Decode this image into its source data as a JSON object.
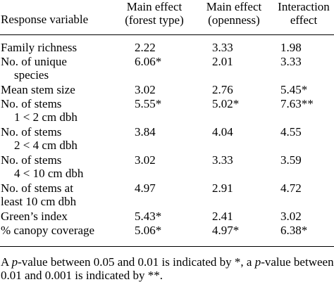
{
  "header": {
    "variable": "Response variable",
    "col1_line1": "Main effect",
    "col1_line2": "(forest type)",
    "col2_line1": "Main effect",
    "col2_line2": "(openness)",
    "col3_line1": "Interaction",
    "col3_line2": "effect"
  },
  "rows": [
    {
      "label": "Family richness",
      "label2": "",
      "v1": "2.22",
      "v2": "3.33",
      "v3": "1.98"
    },
    {
      "label": "No. of unique",
      "label2": "species",
      "v1": "6.06*",
      "v2": "2.01",
      "v3": "3.33"
    },
    {
      "label": "Mean stem size",
      "label2": "",
      "v1": "3.02",
      "v2": "2.76",
      "v3": "5.45*"
    },
    {
      "label": "No. of stems",
      "label2": "1 < 2 cm dbh",
      "v1": "5.55*",
      "v2": "5.02*",
      "v3": "7.63**"
    },
    {
      "label": "No. of stems",
      "label2": "2 < 4 cm dbh",
      "v1": "3.84",
      "v2": "4.04",
      "v3": "4.55"
    },
    {
      "label": "No. of stems",
      "label2": "4 < 10 cm dbh",
      "v1": "3.02",
      "v2": "3.33",
      "v3": "3.59"
    },
    {
      "label": "No. of stems at",
      "label2": "least 10 cm dbh",
      "v1": "4.97",
      "v2": "2.91",
      "v3": "4.72"
    },
    {
      "label": "Green’s index",
      "label2": "",
      "v1": "5.43*",
      "v2": "2.41",
      "v3": "3.02"
    },
    {
      "label": "% canopy coverage",
      "label2": "",
      "v1": "5.06*",
      "v2": "4.97*",
      "v3": "6.38*"
    }
  ],
  "footnote": {
    "line1_a": "A ",
    "line1_p1": "p",
    "line1_b": "-value between 0.05 and 0.01 is indicated by *, a ",
    "line1_p2": "p",
    "line1_c": "-value between",
    "line2": "0.01 and 0.001 is indicated by **."
  }
}
